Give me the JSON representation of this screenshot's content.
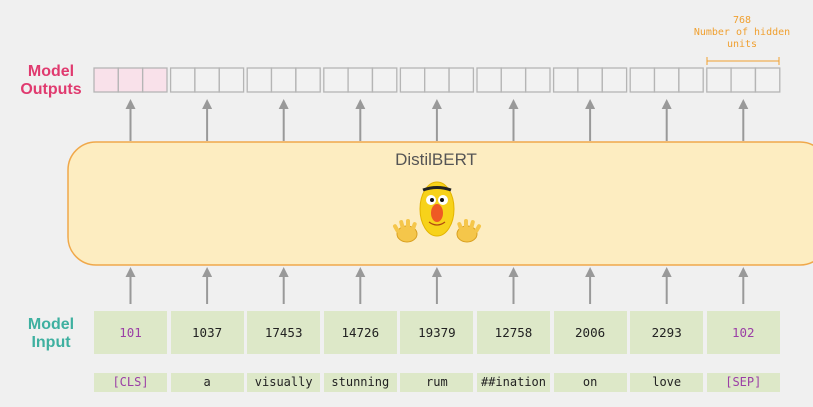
{
  "labels": {
    "outputs_line1": "Model",
    "outputs_line2": "Outputs",
    "input_line1": "Model",
    "input_line2": "Input",
    "hidden_units_count": "768",
    "hidden_units_line1": "Number of hidden",
    "hidden_units_line2": "units"
  },
  "model": {
    "name": "DistilBERT",
    "mascot_icon": "bert-muppet-icon"
  },
  "tokens": [
    {
      "id": "101",
      "word": "[CLS]",
      "special": true
    },
    {
      "id": "1037",
      "word": "a",
      "special": false
    },
    {
      "id": "17453",
      "word": "visually",
      "special": false
    },
    {
      "id": "14726",
      "word": "stunning",
      "special": false
    },
    {
      "id": "19379",
      "word": "rum",
      "special": false
    },
    {
      "id": "12758",
      "word": "##ination",
      "special": false
    },
    {
      "id": "2006",
      "word": "on",
      "special": false
    },
    {
      "id": "2293",
      "word": "love",
      "special": false
    },
    {
      "id": "102",
      "word": "[SEP]",
      "special": true
    }
  ],
  "colors": {
    "outputs_label": "#e03a6f",
    "input_label": "#3eb0a0",
    "cls_output_fill": "#f9e1ea",
    "model_fill": "#fdedc1",
    "model_stroke": "#f0a84a",
    "token_fill": "#dde8c8",
    "special_token_text": "#9b3fa6",
    "hidden_units_text": "#f0a030",
    "arrow": "#999999"
  }
}
